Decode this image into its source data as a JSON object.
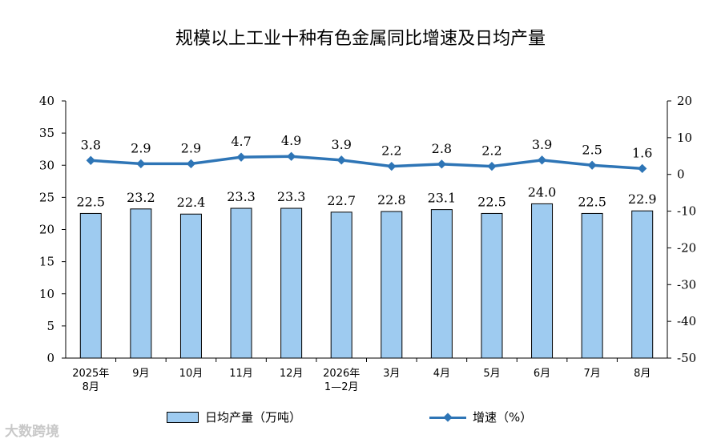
{
  "chart_data": {
    "type": "bar+line",
    "title": "规模以上工业十种有色金属同比增速及日均产量",
    "categories": [
      [
        "2025年",
        "8月"
      ],
      [
        "9月"
      ],
      [
        "10月"
      ],
      [
        "11月"
      ],
      [
        "12月"
      ],
      [
        "2026年",
        "1—2月"
      ],
      [
        "3月"
      ],
      [
        "4月"
      ],
      [
        "5月"
      ],
      [
        "6月"
      ],
      [
        "7月"
      ],
      [
        "8月"
      ]
    ],
    "series": [
      {
        "name": "日均产量（万吨）",
        "type": "bar",
        "axis": "left",
        "color": "#9ecbf0",
        "values": [
          22.5,
          23.2,
          22.4,
          23.3,
          23.3,
          22.7,
          22.8,
          23.1,
          22.5,
          24.0,
          22.5,
          22.9
        ],
        "labels": [
          "22.5",
          "23.2",
          "22.4",
          "23.3",
          "23.3",
          "22.7",
          "22.8",
          "23.1",
          "22.5",
          "24.0",
          "22.5",
          "22.9"
        ]
      },
      {
        "name": "增速（%）",
        "type": "line",
        "axis": "right",
        "color": "#2e75b6",
        "values": [
          3.8,
          2.9,
          2.9,
          4.7,
          4.9,
          3.9,
          2.2,
          2.8,
          2.2,
          3.9,
          2.5,
          1.6
        ],
        "labels": [
          "3.8",
          "2.9",
          "2.9",
          "4.7",
          "4.9",
          "3.9",
          "2.2",
          "2.8",
          "2.2",
          "3.9",
          "2.5",
          "1.6"
        ]
      }
    ],
    "y_left": {
      "lim": [
        0,
        40
      ],
      "ticks": [
        "0",
        "5",
        "10",
        "15",
        "20",
        "25",
        "30",
        "35",
        "40"
      ]
    },
    "y_right": {
      "lim": [
        -50,
        20
      ],
      "ticks": [
        "-50",
        "-40",
        "-30",
        "-20",
        "-10",
        "0",
        "10",
        "20"
      ]
    },
    "grid": false,
    "legend_position": "bottom"
  },
  "watermark": "大数跨境"
}
